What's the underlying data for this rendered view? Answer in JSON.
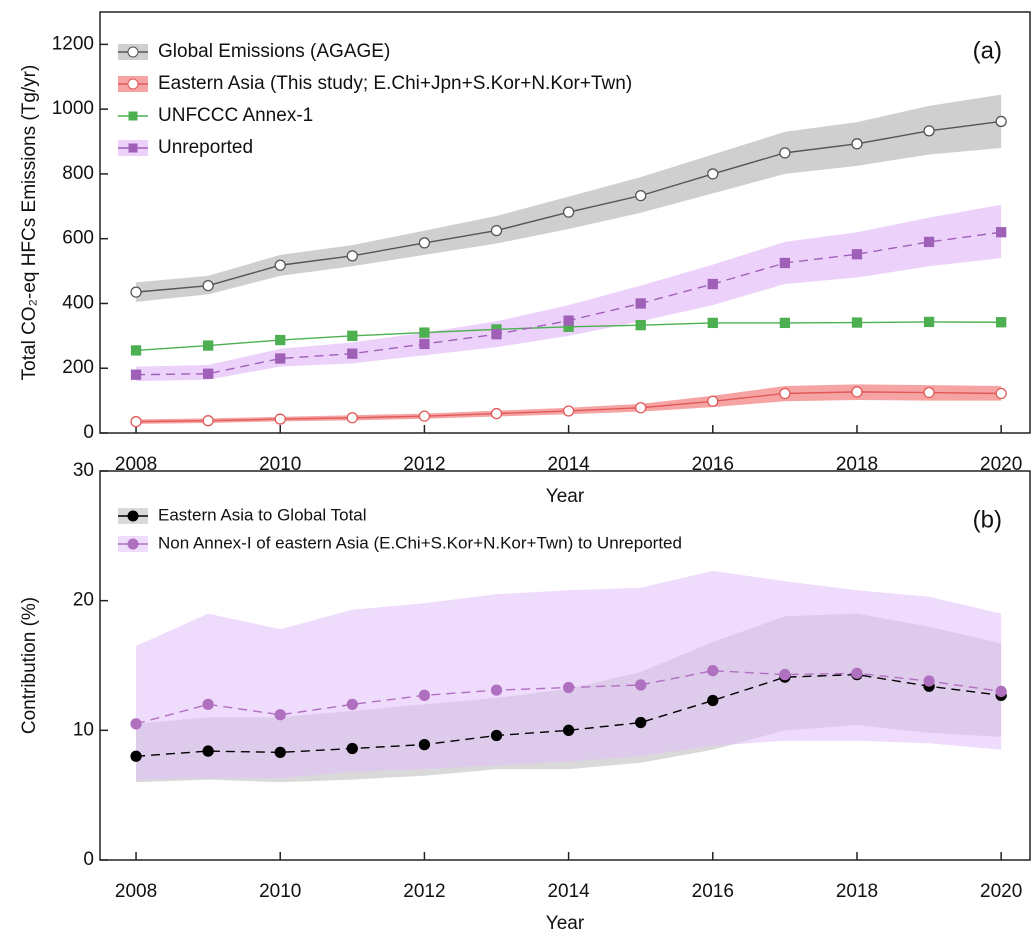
{
  "chart_data": [
    {
      "type": "line",
      "annotation": "(a)",
      "xlabel": "Year",
      "ylabel": "Total CO₂-eq HFCs Emissions (Tg/yr)",
      "x": [
        2008,
        2009,
        2010,
        2011,
        2012,
        2013,
        2014,
        2015,
        2016,
        2017,
        2018,
        2019,
        2020
      ],
      "xlim": [
        2007.5,
        2020.4
      ],
      "xticks": [
        2008,
        2010,
        2012,
        2014,
        2016,
        2018,
        2020
      ],
      "ylim": [
        0,
        1300
      ],
      "yticks": [
        0,
        200,
        400,
        600,
        800,
        1000,
        1200
      ],
      "legend": "upper left",
      "series": [
        {
          "name": "Global Emissions (AGAGE)",
          "color": "#555555",
          "band_color": "#cfcfcf",
          "marker": "circle-open",
          "dashed": false,
          "values": [
            435,
            455,
            518,
            547,
            587,
            625,
            682,
            733,
            800,
            865,
            893,
            933,
            962
          ],
          "band_lower": [
            405,
            428,
            485,
            515,
            550,
            585,
            630,
            680,
            740,
            800,
            825,
            860,
            880
          ],
          "band_upper": [
            465,
            485,
            550,
            580,
            625,
            670,
            730,
            790,
            860,
            930,
            960,
            1010,
            1045
          ]
        },
        {
          "name": "Eastern Asia (This study; E.Chi+Jpn+S.Kor+N.Kor+Twn)",
          "color": "#e05a5a",
          "band_color": "#f5a3a3",
          "marker": "circle-open",
          "dashed": false,
          "values": [
            35,
            38,
            43,
            47,
            52,
            60,
            68,
            78,
            98,
            122,
            127,
            125,
            122
          ],
          "band_lower": [
            28,
            31,
            36,
            39,
            44,
            51,
            58,
            66,
            80,
            98,
            102,
            100,
            100
          ],
          "band_upper": [
            42,
            45,
            50,
            55,
            60,
            69,
            78,
            90,
            115,
            145,
            150,
            148,
            145
          ]
        },
        {
          "name": "UNFCCC Annex-1",
          "color": "#4caf50",
          "marker": "square",
          "dashed": false,
          "values": [
            255,
            270,
            287,
            300,
            310,
            320,
            328,
            333,
            340,
            340,
            341,
            343,
            342
          ]
        },
        {
          "name": "Unreported",
          "color": "#a060b8",
          "band_color": "#ecd2fb",
          "marker": "square",
          "dashed": true,
          "values": [
            180,
            183,
            230,
            245,
            275,
            305,
            347,
            400,
            460,
            525,
            552,
            590,
            620
          ],
          "band_lower": [
            160,
            165,
            205,
            215,
            240,
            265,
            300,
            345,
            395,
            460,
            480,
            515,
            540
          ],
          "band_upper": [
            205,
            210,
            260,
            280,
            310,
            345,
            395,
            455,
            520,
            590,
            620,
            665,
            705
          ]
        }
      ]
    },
    {
      "type": "line",
      "annotation": "(b)",
      "xlabel": "Year",
      "ylabel": "Contribution (%)",
      "x": [
        2008,
        2009,
        2010,
        2011,
        2012,
        2013,
        2014,
        2015,
        2016,
        2017,
        2018,
        2019,
        2020
      ],
      "xlim": [
        2007.5,
        2020.4
      ],
      "xticks": [
        2008,
        2010,
        2012,
        2014,
        2016,
        2018,
        2020
      ],
      "ylim": [
        0,
        30
      ],
      "yticks": [
        0,
        10,
        20,
        30
      ],
      "legend": "upper left",
      "series": [
        {
          "name": "Eastern Asia to Global Total",
          "color": "#000000",
          "band_color": "rgba(170,170,170,0.45)",
          "marker": "circle",
          "dashed": true,
          "values": [
            8.0,
            8.4,
            8.3,
            8.6,
            8.9,
            9.6,
            10.0,
            10.6,
            12.3,
            14.1,
            14.3,
            13.4,
            12.7
          ],
          "band_lower": [
            6.0,
            6.2,
            6.0,
            6.2,
            6.5,
            7.0,
            7.0,
            7.5,
            8.5,
            10.0,
            10.4,
            9.8,
            9.5
          ],
          "band_upper": [
            10.5,
            11.0,
            11.0,
            11.5,
            12.0,
            12.5,
            13.2,
            14.5,
            16.8,
            18.8,
            19.0,
            18.0,
            16.7
          ]
        },
        {
          "name": "Non Annex-I of eastern Asia (E.Chi+S.Kor+N.Kor+Twn) to Unreported",
          "color": "#b070c0",
          "band_color": "rgba(225,190,250,0.55)",
          "marker": "circle",
          "dashed": true,
          "values": [
            10.5,
            12.0,
            11.2,
            12.0,
            12.7,
            13.1,
            13.3,
            13.5,
            14.6,
            14.3,
            14.4,
            13.8,
            13.0
          ],
          "band_lower": [
            6.2,
            6.3,
            6.3,
            6.8,
            7.0,
            7.3,
            7.6,
            8.0,
            8.8,
            9.2,
            9.2,
            9.0,
            8.5
          ],
          "band_upper": [
            16.5,
            19.0,
            17.8,
            19.3,
            19.8,
            20.5,
            20.8,
            21.0,
            22.3,
            21.5,
            20.8,
            20.3,
            19.0
          ]
        }
      ]
    }
  ]
}
